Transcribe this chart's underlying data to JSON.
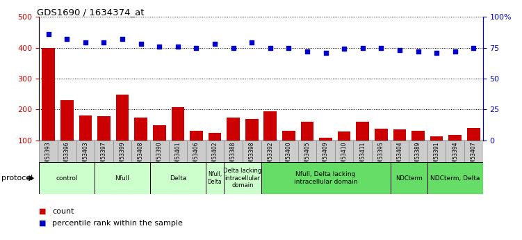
{
  "title": "GDS1690 / 1634374_at",
  "samples": [
    "GSM53393",
    "GSM53396",
    "GSM53403",
    "GSM53397",
    "GSM53399",
    "GSM53408",
    "GSM53390",
    "GSM53401",
    "GSM53406",
    "GSM53402",
    "GSM53388",
    "GSM53398",
    "GSM53392",
    "GSM53400",
    "GSM53405",
    "GSM53409",
    "GSM53410",
    "GSM53411",
    "GSM53395",
    "GSM53404",
    "GSM53389",
    "GSM53391",
    "GSM53394",
    "GSM53407"
  ],
  "counts": [
    400,
    230,
    180,
    178,
    248,
    175,
    150,
    207,
    130,
    125,
    175,
    170,
    195,
    130,
    160,
    108,
    128,
    160,
    138,
    135,
    130,
    112,
    118,
    140
  ],
  "percentiles": [
    86,
    82,
    79,
    79,
    82,
    78,
    76,
    76,
    75,
    78,
    75,
    79,
    75,
    75,
    72,
    71,
    74,
    75,
    75,
    73,
    72,
    71,
    72,
    75
  ],
  "bar_color": "#cc0000",
  "dot_color": "#0000cc",
  "ylim_left": [
    100,
    500
  ],
  "ylim_right": [
    0,
    100
  ],
  "yticks_left": [
    100,
    200,
    300,
    400,
    500
  ],
  "yticks_right": [
    0,
    25,
    50,
    75,
    100
  ],
  "ytick_labels_right": [
    "0",
    "25",
    "50",
    "75",
    "100%"
  ],
  "groups": [
    {
      "label": "control",
      "start": 0,
      "end": 3,
      "color": "#ccffcc"
    },
    {
      "label": "Nfull",
      "start": 3,
      "end": 6,
      "color": "#ccffcc"
    },
    {
      "label": "Delta",
      "start": 6,
      "end": 9,
      "color": "#ccffcc"
    },
    {
      "label": "Nfull,\nDelta",
      "start": 9,
      "end": 10,
      "color": "#ccffcc"
    },
    {
      "label": "Delta lacking\nintracellular\ndomain",
      "start": 10,
      "end": 12,
      "color": "#ccffcc"
    },
    {
      "label": "Nfull, Delta lacking\nintracellular domain",
      "start": 12,
      "end": 19,
      "color": "#66dd66"
    },
    {
      "label": "NDCterm",
      "start": 19,
      "end": 21,
      "color": "#66dd66"
    },
    {
      "label": "NDCterm, Delta",
      "start": 21,
      "end": 24,
      "color": "#66dd66"
    }
  ],
  "legend_count_label": "count",
  "legend_pct_label": "percentile rank within the sample",
  "protocol_label": "protocol",
  "sample_bg_color": "#cccccc",
  "sample_border_color": "#888888"
}
